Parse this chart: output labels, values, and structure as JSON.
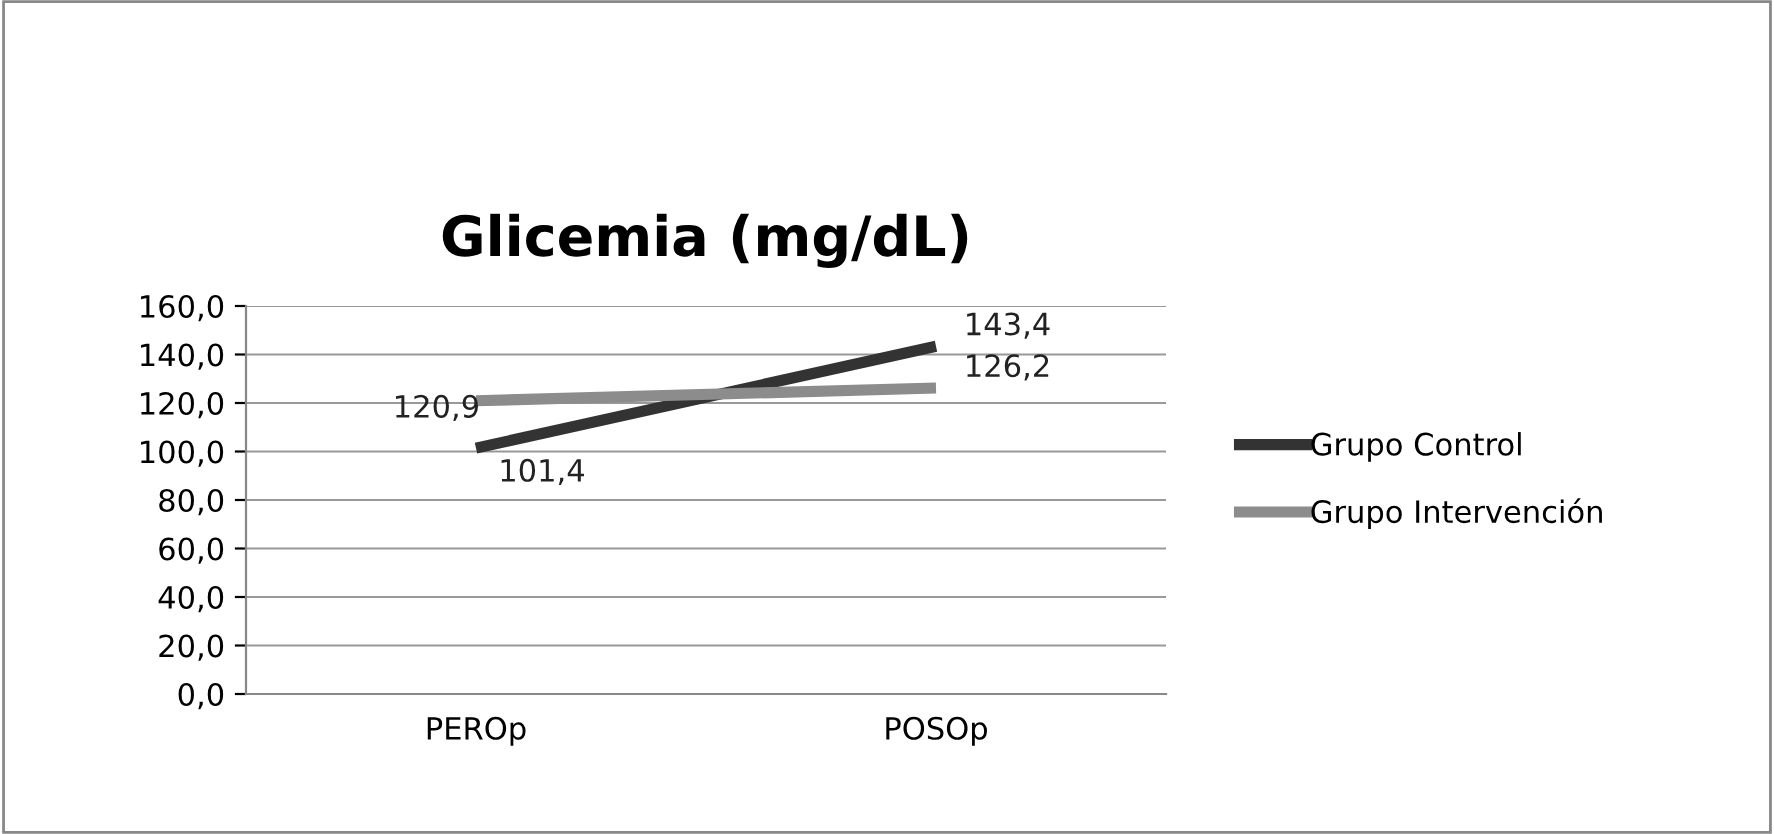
{
  "chart_data": {
    "type": "line",
    "title": "Glicemia (mg/dL)",
    "categories": [
      "PEROp",
      "POSOp"
    ],
    "series": [
      {
        "name": "Grupo Control",
        "color": "#333333",
        "values": [
          101.4,
          143.4
        ],
        "value_labels": [
          "101,4",
          "143,4"
        ]
      },
      {
        "name": "Grupo Intervención",
        "color": "#8c8c8c",
        "values": [
          120.9,
          126.2
        ],
        "value_labels": [
          "120,9",
          "126,2"
        ]
      }
    ],
    "ylim": [
      0,
      160
    ],
    "yticks": [
      {
        "value": 0,
        "label": "0,0"
      },
      {
        "value": 20,
        "label": "20,0"
      },
      {
        "value": 40,
        "label": "40,0"
      },
      {
        "value": 60,
        "label": "60,0"
      },
      {
        "value": 80,
        "label": "80,0"
      },
      {
        "value": 100,
        "label": "100,0"
      },
      {
        "value": 120,
        "label": "120,0"
      },
      {
        "value": 140,
        "label": "140,0"
      },
      {
        "value": 160,
        "label": "160,0"
      }
    ],
    "grid": "y",
    "legend": "right",
    "marker": "none",
    "line_style": "solid"
  }
}
